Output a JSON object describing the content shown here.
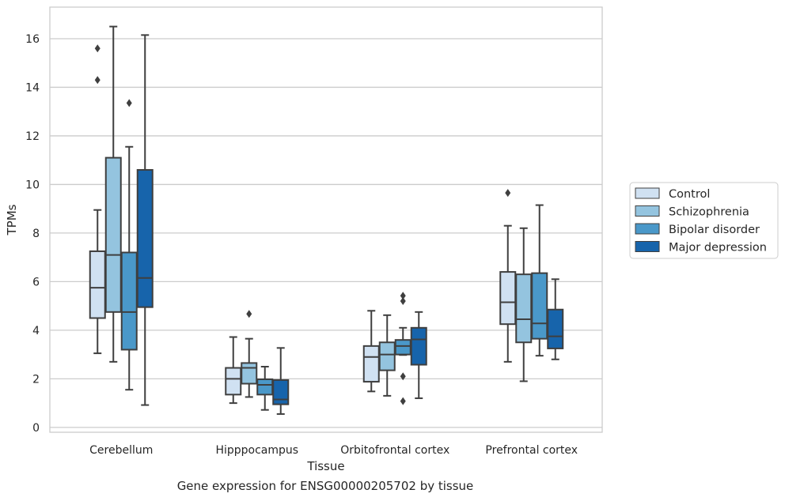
{
  "caption": "Gene expression for ENSG00000205702 by tissue",
  "chart_data": {
    "type": "box",
    "xlabel": "Tissue",
    "ylabel": "TPMs",
    "ylim": [
      -0.2,
      17.3
    ],
    "yticks": [
      0,
      2,
      4,
      6,
      8,
      10,
      12,
      14,
      16
    ],
    "grid": "horizontal",
    "legend_position": "right",
    "categories": [
      "Cerebellum",
      "Hipppocampus",
      "Orbitofrontal cortex",
      "Prefrontal cortex"
    ],
    "series": [
      {
        "name": "Control",
        "color": "#d0e1f2",
        "boxes": [
          {
            "whislo": 3.05,
            "q1": 4.5,
            "med": 5.75,
            "q3": 7.25,
            "whishi": 8.95,
            "fliers": [
              14.3,
              15.6
            ]
          },
          {
            "whislo": 1.0,
            "q1": 1.35,
            "med": 2.0,
            "q3": 2.45,
            "whishi": 3.72,
            "fliers": []
          },
          {
            "whislo": 1.48,
            "q1": 1.88,
            "med": 2.9,
            "q3": 3.35,
            "whishi": 4.8,
            "fliers": []
          },
          {
            "whislo": 2.7,
            "q1": 4.25,
            "med": 5.15,
            "q3": 6.4,
            "whishi": 8.3,
            "fliers": [
              9.65
            ]
          }
        ]
      },
      {
        "name": "Schizophrenia",
        "color": "#94c4df",
        "boxes": [
          {
            "whislo": 2.7,
            "q1": 4.75,
            "med": 7.1,
            "q3": 11.1,
            "whishi": 16.5,
            "fliers": []
          },
          {
            "whislo": 1.25,
            "q1": 1.8,
            "med": 2.45,
            "q3": 2.65,
            "whishi": 3.65,
            "fliers": [
              4.67
            ]
          },
          {
            "whislo": 1.3,
            "q1": 2.35,
            "med": 3.0,
            "q3": 3.5,
            "whishi": 4.62,
            "fliers": []
          },
          {
            "whislo": 1.9,
            "q1": 3.5,
            "med": 4.45,
            "q3": 6.3,
            "whishi": 8.2,
            "fliers": []
          }
        ]
      },
      {
        "name": "Bipolar disorder",
        "color": "#4a98c9",
        "boxes": [
          {
            "whislo": 1.55,
            "q1": 3.2,
            "med": 4.75,
            "q3": 7.2,
            "whishi": 11.55,
            "fliers": [
              13.35
            ]
          },
          {
            "whislo": 0.72,
            "q1": 1.35,
            "med": 1.75,
            "q3": 1.98,
            "whishi": 2.5,
            "fliers": []
          },
          {
            "whislo": 2.98,
            "q1": 3.0,
            "med": 3.35,
            "q3": 3.6,
            "whishi": 4.1,
            "fliers": [
              1.08,
              2.1,
              5.2,
              5.42
            ]
          },
          {
            "whislo": 2.95,
            "q1": 3.65,
            "med": 4.28,
            "q3": 6.35,
            "whishi": 9.15,
            "fliers": []
          }
        ]
      },
      {
        "name": "Major depression",
        "color": "#1764ab",
        "boxes": [
          {
            "whislo": 0.92,
            "q1": 4.95,
            "med": 6.15,
            "q3": 10.6,
            "whishi": 16.15,
            "fliers": []
          },
          {
            "whislo": 0.55,
            "q1": 0.95,
            "med": 1.15,
            "q3": 1.95,
            "whishi": 3.27,
            "fliers": []
          },
          {
            "whislo": 1.2,
            "q1": 2.58,
            "med": 3.62,
            "q3": 4.1,
            "whishi": 4.75,
            "fliers": []
          },
          {
            "whislo": 2.8,
            "q1": 3.25,
            "med": 3.75,
            "q3": 4.85,
            "whishi": 6.1,
            "fliers": []
          }
        ]
      }
    ]
  }
}
